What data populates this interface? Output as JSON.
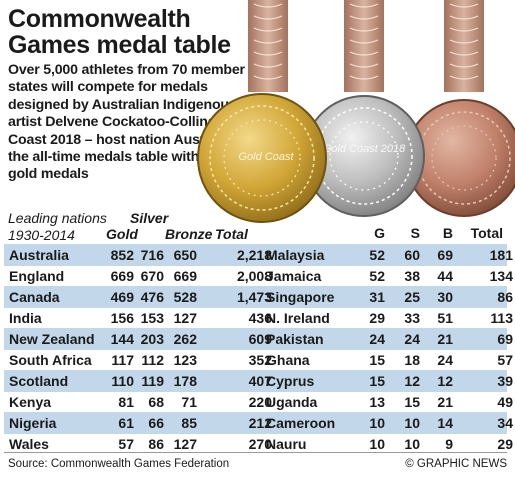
{
  "header": {
    "title_line1": "Commonwealth",
    "title_line2": "Games medal table",
    "intro": "Over 5,000 athletes from 70 member states will compete for medals designed by Australian Indigenous artist Delvene Cockatoo-Collins at Gold Coast 2018 – host nation Australia lead the all-time medals table with over 850 gold medals"
  },
  "medals": {
    "gold_text": "Gold Coast",
    "silver_text": "Gold Coast 2018",
    "colors": {
      "gold": "#d1a637",
      "silver": "#bcbcbc",
      "bronze": "#c0806a",
      "ribbon": "#c9a08c"
    }
  },
  "table": {
    "leading_line1": "Leading nations",
    "leading_line2": "1930-2014",
    "col_gold": "Gold",
    "col_silver": "Silver",
    "col_bronze": "Bronze",
    "col_total": "Total",
    "col_g": "G",
    "col_s": "S",
    "col_b": "B",
    "col_total_right": "Total",
    "band_color": "#c2d8ea"
  },
  "footer": {
    "source": "Source: Commonwealth Games Federation",
    "credit": "© GRAPHIC NEWS"
  },
  "chart_data": {
    "type": "table",
    "title": "Commonwealth Games medal table",
    "columns": [
      "Nation",
      "Gold",
      "Silver",
      "Bronze",
      "Total"
    ],
    "rows": [
      {
        "name": "Australia",
        "gold": "852",
        "silver": "716",
        "bronze": "650",
        "total": "2,218"
      },
      {
        "name": "England",
        "gold": "669",
        "silver": "670",
        "bronze": "669",
        "total": "2,008"
      },
      {
        "name": "Canada",
        "gold": "469",
        "silver": "476",
        "bronze": "528",
        "total": "1,473"
      },
      {
        "name": "India",
        "gold": "156",
        "silver": "153",
        "bronze": "127",
        "total": "436"
      },
      {
        "name": "New Zealand",
        "gold": "144",
        "silver": "203",
        "bronze": "262",
        "total": "609"
      },
      {
        "name": "South Africa",
        "gold": "117",
        "silver": "112",
        "bronze": "123",
        "total": "352"
      },
      {
        "name": "Scotland",
        "gold": "110",
        "silver": "119",
        "bronze": "178",
        "total": "407"
      },
      {
        "name": "Kenya",
        "gold": "81",
        "silver": "68",
        "bronze": "71",
        "total": "220"
      },
      {
        "name": "Nigeria",
        "gold": "61",
        "silver": "66",
        "bronze": "85",
        "total": "212"
      },
      {
        "name": "Wales",
        "gold": "57",
        "silver": "86",
        "bronze": "127",
        "total": "270"
      },
      {
        "name": "Malaysia",
        "gold": "52",
        "silver": "60",
        "bronze": "69",
        "total": "181"
      },
      {
        "name": "Jamaica",
        "gold": "52",
        "silver": "38",
        "bronze": "44",
        "total": "134"
      },
      {
        "name": "Singapore",
        "gold": "31",
        "silver": "25",
        "bronze": "30",
        "total": "86"
      },
      {
        "name": "N. Ireland",
        "gold": "29",
        "silver": "33",
        "bronze": "51",
        "total": "113"
      },
      {
        "name": "Pakistan",
        "gold": "24",
        "silver": "24",
        "bronze": "21",
        "total": "69"
      },
      {
        "name": "Ghana",
        "gold": "15",
        "silver": "18",
        "bronze": "24",
        "total": "57"
      },
      {
        "name": "Cyprus",
        "gold": "15",
        "silver": "12",
        "bronze": "12",
        "total": "39"
      },
      {
        "name": "Uganda",
        "gold": "13",
        "silver": "15",
        "bronze": "21",
        "total": "49"
      },
      {
        "name": "Cameroon",
        "gold": "10",
        "silver": "10",
        "bronze": "14",
        "total": "34"
      },
      {
        "name": "Nauru",
        "gold": "10",
        "silver": "10",
        "bronze": "9",
        "total": "29"
      }
    ]
  }
}
